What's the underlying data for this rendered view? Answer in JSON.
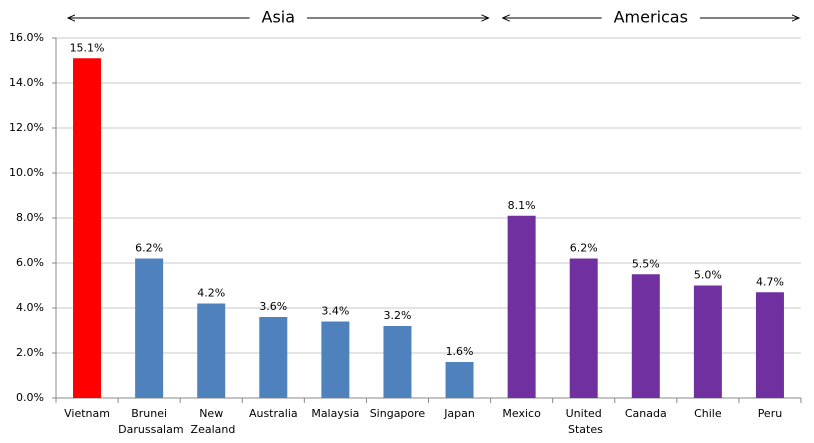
{
  "chart_data": {
    "type": "bar",
    "categories": [
      "Vietnam",
      "Brunei Darussalam",
      "New Zealand",
      "Australia",
      "Malaysia",
      "Singapore",
      "Japan",
      "Mexico",
      "United States",
      "Canada",
      "Chile",
      "Peru"
    ],
    "values": [
      15.1,
      6.2,
      4.2,
      3.6,
      3.4,
      3.2,
      1.6,
      8.1,
      6.2,
      5.5,
      5.0,
      4.7
    ],
    "value_labels": [
      "15.1%",
      "6.2%",
      "4.2%",
      "3.6%",
      "3.4%",
      "3.2%",
      "1.6%",
      "8.1%",
      "6.2%",
      "5.5%",
      "5.0%",
      "4.7%"
    ],
    "colors": [
      "#ff0000",
      "#4f81bd",
      "#4f81bd",
      "#4f81bd",
      "#4f81bd",
      "#4f81bd",
      "#4f81bd",
      "#7030a0",
      "#7030a0",
      "#7030a0",
      "#7030a0",
      "#7030a0"
    ],
    "groups": [
      {
        "label": "Asia",
        "count": 7
      },
      {
        "label": "Americas",
        "count": 5
      }
    ],
    "ylim": [
      0,
      16
    ],
    "yticks": [
      {
        "value": 0,
        "label": "0.0%"
      },
      {
        "value": 2,
        "label": "2.0%"
      },
      {
        "value": 4,
        "label": "4.0%"
      },
      {
        "value": 6,
        "label": "6.0%"
      },
      {
        "value": 8,
        "label": "8.0%"
      },
      {
        "value": 10,
        "label": "10.0%"
      },
      {
        "value": 12,
        "label": "12.0%"
      },
      {
        "value": 14,
        "label": "14.0%"
      },
      {
        "value": 16,
        "label": "16.0%"
      }
    ],
    "grid": true
  }
}
